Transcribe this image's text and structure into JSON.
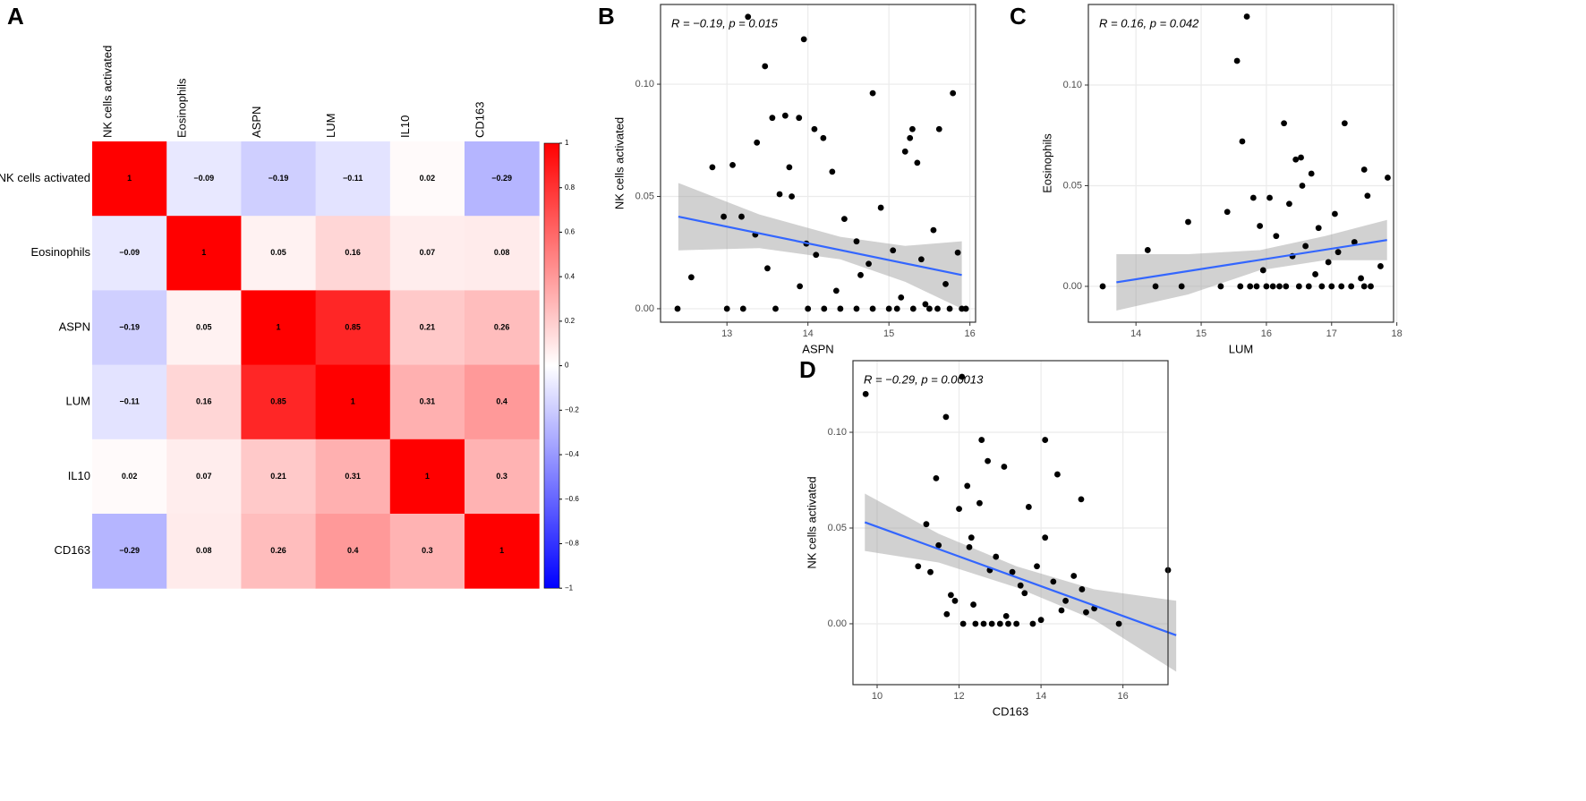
{
  "chart_data": [
    {
      "type": "heatmap",
      "panel_label": "A",
      "categories": [
        "NK cells activated",
        "Eosinophils",
        "ASPN",
        "LUM",
        "IL10",
        "CD163"
      ],
      "values": [
        [
          1,
          -0.09,
          -0.19,
          -0.11,
          0.02,
          -0.29
        ],
        [
          -0.09,
          1,
          0.05,
          0.16,
          0.07,
          0.08
        ],
        [
          -0.19,
          0.05,
          1,
          0.85,
          0.21,
          0.26
        ],
        [
          -0.11,
          0.16,
          0.85,
          1,
          0.31,
          0.4
        ],
        [
          0.02,
          0.07,
          0.21,
          0.31,
          1,
          0.3
        ],
        [
          -0.29,
          0.08,
          0.26,
          0.4,
          0.3,
          1
        ]
      ],
      "value_labels": [
        [
          "1",
          "−0.09",
          "−0.19",
          "−0.11",
          "0.02",
          "−0.29"
        ],
        [
          "−0.09",
          "1",
          "0.05",
          "0.16",
          "0.07",
          "0.08"
        ],
        [
          "−0.19",
          "0.05",
          "1",
          "0.85",
          "0.21",
          "0.26"
        ],
        [
          "−0.11",
          "0.16",
          "0.85",
          "1",
          "0.31",
          "0.4"
        ],
        [
          "0.02",
          "0.07",
          "0.21",
          "0.31",
          "1",
          "0.3"
        ],
        [
          "−0.29",
          "0.08",
          "0.26",
          "0.4",
          "0.3",
          "1"
        ]
      ],
      "clim": [
        -1,
        1
      ],
      "cticks": [
        1,
        0.8,
        0.6,
        0.4,
        0.2,
        0,
        {
          "value": -0.2,
          "label": "−0.2"
        },
        {
          "value": -0.4,
          "label": "−0.4"
        },
        {
          "value": -0.6,
          "label": "−0.6"
        },
        {
          "value": -0.8,
          "label": "−0.8"
        },
        {
          "value": -1,
          "label": "−1"
        }
      ],
      "colors": {
        "low": "#0000ff",
        "mid": "#ffffff",
        "high": "#ff0000"
      }
    },
    {
      "type": "scatter",
      "panel_label": "B",
      "annotation": "R = −0.19, p = 0.015",
      "x_label": "ASPN",
      "y_label": "NK cells activated",
      "x": [
        12.39,
        12.56,
        12.82,
        12.96,
        13.07,
        13.26,
        13.18,
        13.37,
        13.47,
        13.56,
        13.72,
        13.77,
        13.95,
        13.89,
        14.08,
        14.19,
        14.8,
        15.29,
        15.79,
        15.26,
        15.62,
        15.35,
        13.35,
        13.5,
        13.65,
        13.8,
        13.98,
        14.1,
        14.3,
        14.45,
        14.6,
        14.75,
        14.9,
        15.05,
        15.2,
        15.4,
        15.55,
        15.7,
        15.85,
        13.0,
        13.2,
        13.6,
        14.0,
        14.2,
        14.4,
        14.6,
        14.8,
        15.0,
        15.1,
        15.3,
        15.5,
        15.6,
        15.75,
        15.9,
        15.95,
        13.9,
        14.35,
        14.65,
        15.15,
        15.45
      ],
      "y": [
        0,
        0.014,
        0.063,
        0.041,
        0.064,
        0.13,
        0.041,
        0.074,
        0.108,
        0.085,
        0.086,
        0.063,
        0.12,
        0.085,
        0.08,
        0.076,
        0.096,
        0.08,
        0.096,
        0.076,
        0.08,
        0.065,
        0.033,
        0.018,
        0.051,
        0.05,
        0.029,
        0.024,
        0.061,
        0.04,
        0.03,
        0.02,
        0.045,
        0.026,
        0.07,
        0.022,
        0.035,
        0.011,
        0.025,
        0,
        0,
        0,
        0,
        0,
        0,
        0,
        0,
        0,
        0,
        0,
        0,
        0,
        0,
        0,
        0,
        0.01,
        0.008,
        0.015,
        0.005,
        0.002
      ],
      "fit": {
        "x": [
          12.4,
          15.9
        ],
        "y": [
          0.041,
          0.015
        ]
      },
      "ci": {
        "x": [
          12.4,
          13.4,
          14.4,
          15.2,
          15.9
        ],
        "upper": [
          0.056,
          0.042,
          0.032,
          0.028,
          0.03
        ],
        "lower": [
          0.026,
          0.027,
          0.022,
          0.012,
          0.0
        ]
      },
      "xlim": [
        12.18,
        16.07
      ],
      "ylim": [
        -0.006,
        0.1355
      ],
      "xticks": [
        13,
        14,
        15,
        16
      ],
      "yticks": [
        {
          "value": 0,
          "label": "0.00"
        },
        {
          "value": 0.05,
          "label": "0.05"
        },
        {
          "value": 0.1,
          "label": "0.10"
        }
      ],
      "grid": true
    },
    {
      "type": "scatter",
      "panel_label": "C",
      "annotation": "R = 0.16, p = 0.042",
      "x_label": "LUM",
      "y_label": "Eosinophils",
      "x": [
        13.49,
        14.18,
        14.8,
        15.55,
        15.7,
        15.63,
        16.27,
        17.2,
        15.8,
        16.45,
        16.53,
        16.69,
        17.5,
        17.86,
        15.4,
        15.9,
        16.05,
        16.15,
        16.35,
        16.6,
        16.8,
        16.95,
        17.05,
        17.35,
        17.55,
        17.75,
        15.95,
        16.4,
        16.75,
        17.1,
        17.45,
        14.3,
        14.7,
        15.3,
        15.6,
        15.75,
        15.85,
        16.0,
        16.1,
        16.2,
        16.3,
        16.5,
        16.65,
        16.85,
        17.0,
        17.15,
        17.3,
        17.5,
        17.6,
        16.55
      ],
      "y": [
        0,
        0.018,
        0.032,
        0.112,
        0.134,
        0.072,
        0.081,
        0.081,
        0.044,
        0.063,
        0.064,
        0.056,
        0.058,
        0.054,
        0.037,
        0.03,
        0.044,
        0.025,
        0.041,
        0.02,
        0.029,
        0.012,
        0.036,
        0.022,
        0.045,
        0.01,
        0.008,
        0.015,
        0.006,
        0.017,
        0.004,
        0,
        0,
        0,
        0,
        0,
        0,
        0,
        0,
        0,
        0,
        0,
        0,
        0,
        0,
        0,
        0,
        0,
        0,
        0.05
      ],
      "fit": {
        "x": [
          13.7,
          17.85
        ],
        "y": [
          0.002,
          0.023
        ]
      },
      "ci": {
        "x": [
          13.7,
          14.8,
          15.9,
          16.9,
          17.85
        ],
        "upper": [
          0.016,
          0.016,
          0.018,
          0.025,
          0.033
        ],
        "lower": [
          -0.012,
          -0.004,
          0.008,
          0.013,
          0.013
        ]
      },
      "xlim": [
        13.27,
        17.95
      ],
      "ylim": [
        -0.0178,
        0.14
      ],
      "xticks": [
        14,
        15,
        16,
        17,
        18
      ],
      "yticks": [
        {
          "value": 0,
          "label": "0.00"
        },
        {
          "value": 0.05,
          "label": "0.05"
        },
        {
          "value": 0.1,
          "label": "0.10"
        }
      ],
      "grid": true
    },
    {
      "type": "scatter",
      "panel_label": "D",
      "annotation": "R = −0.29, p = 0.00013",
      "x_label": "CD163",
      "y_label": "NK cells activated",
      "x": [
        9.72,
        12.07,
        11.68,
        11.44,
        12.55,
        14.1,
        14.4,
        14.98,
        17.1,
        15.9,
        11.3,
        11.0,
        11.2,
        11.5,
        11.8,
        12.0,
        12.2,
        12.3,
        12.5,
        12.7,
        12.9,
        13.1,
        13.3,
        13.5,
        13.7,
        13.9,
        14.1,
        14.3,
        14.6,
        14.8,
        15.0,
        15.3,
        12.1,
        12.4,
        12.6,
        12.8,
        13.0,
        13.2,
        13.4,
        13.8,
        11.7,
        11.9,
        12.35,
        12.75,
        13.15,
        13.6,
        14.0,
        14.5,
        15.1,
        12.25
      ],
      "y": [
        0.12,
        0.129,
        0.108,
        0.076,
        0.096,
        0.096,
        0.078,
        0.065,
        0.028,
        0,
        0.027,
        0.03,
        0.052,
        0.041,
        0.015,
        0.06,
        0.072,
        0.045,
        0.063,
        0.085,
        0.035,
        0.082,
        0.027,
        0.02,
        0.061,
        0.03,
        0.045,
        0.022,
        0.012,
        0.025,
        0.018,
        0.008,
        0,
        0,
        0,
        0,
        0,
        0,
        0,
        0,
        0.005,
        0.012,
        0.01,
        0.028,
        0.004,
        0.016,
        0.002,
        0.007,
        0.006,
        0.04
      ],
      "fit": {
        "x": [
          9.7,
          17.3
        ],
        "y": [
          0.053,
          -0.006
        ]
      },
      "ci": {
        "x": [
          9.7,
          11.5,
          13.4,
          15.3,
          17.3
        ],
        "upper": [
          0.068,
          0.047,
          0.03,
          0.018,
          0.012
        ],
        "lower": [
          0.038,
          0.032,
          0.019,
          0.002,
          -0.025
        ]
      },
      "xlim": [
        9.41,
        17.1
      ],
      "ylim": [
        -0.0318,
        0.1374
      ],
      "xticks": [
        10,
        12,
        14,
        16
      ],
      "yticks": [
        {
          "value": 0,
          "label": "0.00"
        },
        {
          "value": 0.05,
          "label": "0.05"
        },
        {
          "value": 0.1,
          "label": "0.10"
        }
      ],
      "grid": true
    }
  ]
}
